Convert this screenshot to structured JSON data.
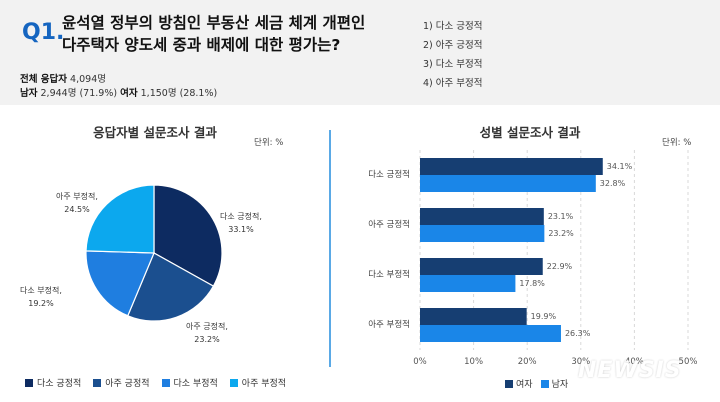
{
  "question": {
    "number": "Q1.",
    "line1": "윤석열 정부의 방침인 부동산 세금 체계 개편인",
    "line2": "다주택자 양도세 중과 배제에 대한 평가는?",
    "options": [
      "1) 다소 긍정적",
      "2) 아주 긍정적",
      "3) 다소 부정적",
      "4) 아주 부정적"
    ]
  },
  "respondents": {
    "total_label": "전체 응답자",
    "total_value": "4,094명",
    "male_label": "남자",
    "male_value": "2,944명 (71.9%)",
    "female_label": "여자",
    "female_value": "1,150명 (28.1%)"
  },
  "colors": {
    "dark": "#0d2b61",
    "mid": "#1b4f8f",
    "blue": "#1f7ee0",
    "light": "#0ca8ee",
    "divider": "#5aa9e6",
    "female": "#163e72",
    "male": "#1a86e8"
  },
  "chart_data": [
    {
      "type": "pie",
      "title": "응답자별 설문조사 결과",
      "unit": "단위: %",
      "categories": [
        "다소 긍정적",
        "아주 긍정적",
        "다소 부정적",
        "아주 부정적"
      ],
      "values": [
        33.1,
        23.2,
        19.2,
        24.5
      ],
      "value_labels": [
        "33.1%",
        "23.2%",
        "19.2%",
        "24.5%"
      ],
      "label_names": [
        "다소 긍정적,",
        "아주 긍정적,",
        "다소 부정적,",
        "아주 부정적,"
      ],
      "legend": "bottom"
    },
    {
      "type": "bar",
      "orientation": "horizontal",
      "title": "성별 설문조사 결과",
      "unit": "단위: %",
      "categories": [
        "다소 긍정적",
        "아주 긍정적",
        "다소 부정적",
        "아주 부정적"
      ],
      "series": [
        {
          "name": "여자",
          "values": [
            34.1,
            23.1,
            22.9,
            19.9
          ],
          "labels": [
            "34.1%",
            "23.1%",
            "22.9%",
            "19.9%"
          ]
        },
        {
          "name": "남자",
          "values": [
            32.8,
            23.2,
            17.8,
            26.3
          ],
          "labels": [
            "32.8%",
            "23.2%",
            "17.8%",
            "26.3%"
          ]
        }
      ],
      "xlim": [
        0,
        50
      ],
      "xticks": [
        "0%",
        "10%",
        "20%",
        "30%",
        "40%",
        "50%"
      ],
      "grid": true,
      "legend": "bottom-right"
    }
  ],
  "watermark": "NEWSIS"
}
